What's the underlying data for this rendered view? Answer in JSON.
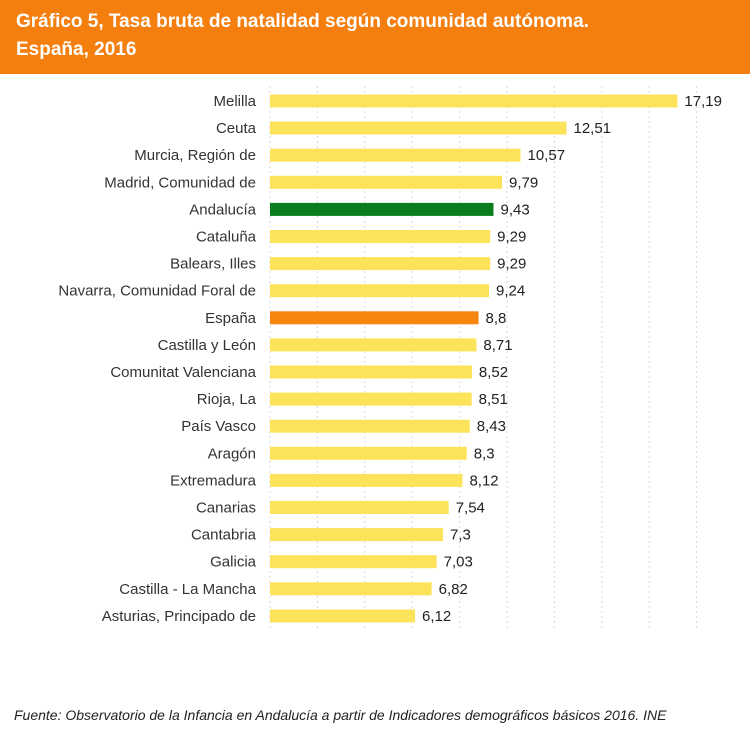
{
  "header": {
    "title": "Gráfico 5, Tasa bruta de natalidad según comunidad autónoma.\nEspaña, 2016"
  },
  "chart_data": {
    "type": "bar",
    "orientation": "horizontal",
    "title": "Gráfico 5, Tasa bruta de natalidad según comunidad autónoma. España, 2016",
    "xlabel": "",
    "ylabel": "",
    "xlim": [
      0,
      18
    ],
    "grid": true,
    "categories": [
      "Melilla",
      "Ceuta",
      "Murcia, Región de",
      "Madrid, Comunidad de",
      "Andalucía",
      "Cataluña",
      "Balears, Illes",
      "Navarra, Comunidad Foral de",
      "España",
      "Castilla y León",
      "Comunitat Valenciana",
      "Rioja, La",
      "País Vasco",
      "Aragón",
      "Extremadura",
      "Canarias",
      "Cantabria",
      "Galicia",
      "Castilla - La Mancha",
      "Asturias, Principado de"
    ],
    "values": [
      17.19,
      12.51,
      10.57,
      9.79,
      9.43,
      9.29,
      9.29,
      9.24,
      8.8,
      8.71,
      8.52,
      8.51,
      8.43,
      8.3,
      8.12,
      7.54,
      7.3,
      7.03,
      6.82,
      6.12
    ],
    "value_labels": [
      "17,19",
      "12,51",
      "10,57",
      "9,79",
      "9,43",
      "9,29",
      "9,29",
      "9,24",
      "8,8",
      "8,71",
      "8,52",
      "8,51",
      "8,43",
      "8,3",
      "8,12",
      "7,54",
      "7,3",
      "7,03",
      "6,82",
      "6,12"
    ],
    "colors": {
      "default": "#fde35a",
      "Andalucía": "#0a7d1e",
      "España": "#f7860f"
    }
  },
  "colors": {
    "header_bg": "#f57f0e",
    "header_text": "#ffffff",
    "grid": "#d9d9d9",
    "label_text": "#333333"
  },
  "source": "Fuente: Observatorio de la Infancia en Andalucía a partir de Indicadores demográficos básicos 2016. INE"
}
